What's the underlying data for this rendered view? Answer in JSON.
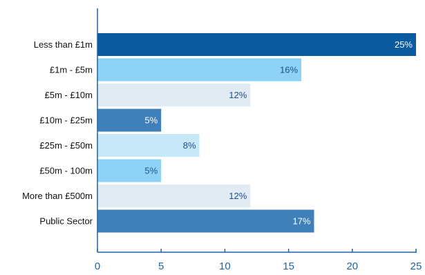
{
  "chart_data": {
    "type": "bar",
    "orientation": "horizontal",
    "categories": [
      "Less than £1m",
      "£1m - £5m",
      "£5m - £10m",
      "£10m - £25m",
      "£25m - £50m",
      "£50m - 100m",
      "More than £500m",
      "Public Sector"
    ],
    "values": [
      25,
      16,
      12,
      5,
      8,
      5,
      12,
      17
    ],
    "data_labels": [
      "25%",
      "16%",
      "12%",
      "5%",
      "8%",
      "5%",
      "12%",
      "17%"
    ],
    "bar_colors": [
      "#0a5aa0",
      "#8ed3f5",
      "#e1ebf3",
      "#3f7fba",
      "#c6e8f9",
      "#8ed3f5",
      "#e1ebf3",
      "#3f7fba"
    ],
    "label_colors": [
      "#ffffff",
      "#1d4f8a",
      "#1d4f8a",
      "#ffffff",
      "#1d4f8a",
      "#1d4f8a",
      "#1d4f8a",
      "#ffffff"
    ],
    "x_ticks": [
      0,
      5,
      10,
      15,
      20,
      25
    ],
    "x_tick_labels": [
      "0",
      "5",
      "10",
      "15",
      "20",
      "25"
    ],
    "xlim": [
      0,
      25
    ],
    "axis_color": "#1d63a6",
    "title": "",
    "xlabel": "",
    "ylabel": "",
    "grid": false,
    "legend": false
  }
}
